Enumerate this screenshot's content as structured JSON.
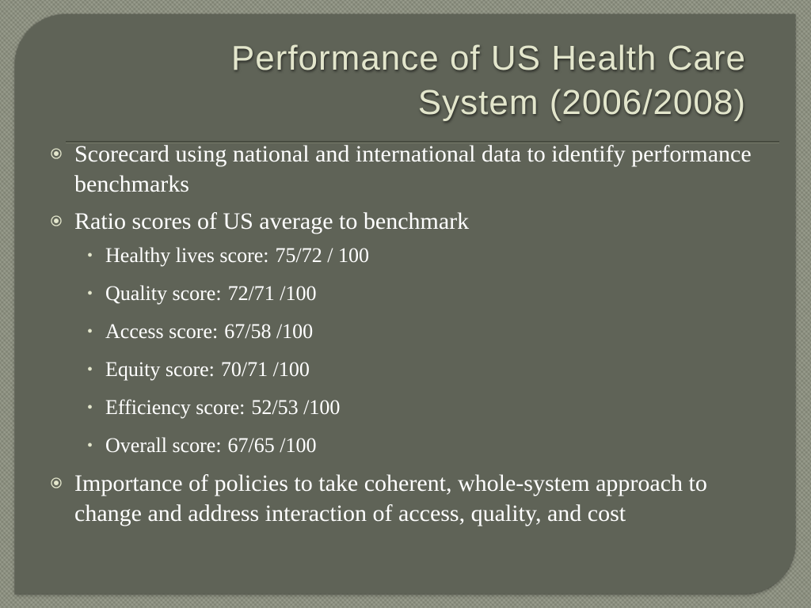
{
  "slide": {
    "title_lines": [
      "Performance of US Health Care",
      "System (2006/2008)"
    ],
    "bullets": [
      {
        "text": "Scorecard using national and international data to identify performance benchmarks"
      },
      {
        "text": "Ratio scores of US average to benchmark"
      },
      {
        "text": "Importance of policies to take coherent, whole-system approach to change and address interaction of access, quality, and cost"
      }
    ],
    "scores": [
      {
        "label": "Healthy lives score:",
        "value": "75/72 / 100"
      },
      {
        "label": "Quality score:",
        "value": "72/71 /100"
      },
      {
        "label": "Access score:",
        "value": "67/58 /100"
      },
      {
        "label": "Equity score:",
        "value": "70/71 /100"
      },
      {
        "label": "Efficiency score:",
        "value": "52/53 /100"
      },
      {
        "label": "Overall score:",
        "value": "67/65 /100"
      }
    ],
    "colors": {
      "panel": "#5f6357",
      "background": "#8c907f",
      "title": "#e3e6cc",
      "text": "#ffffff"
    }
  }
}
